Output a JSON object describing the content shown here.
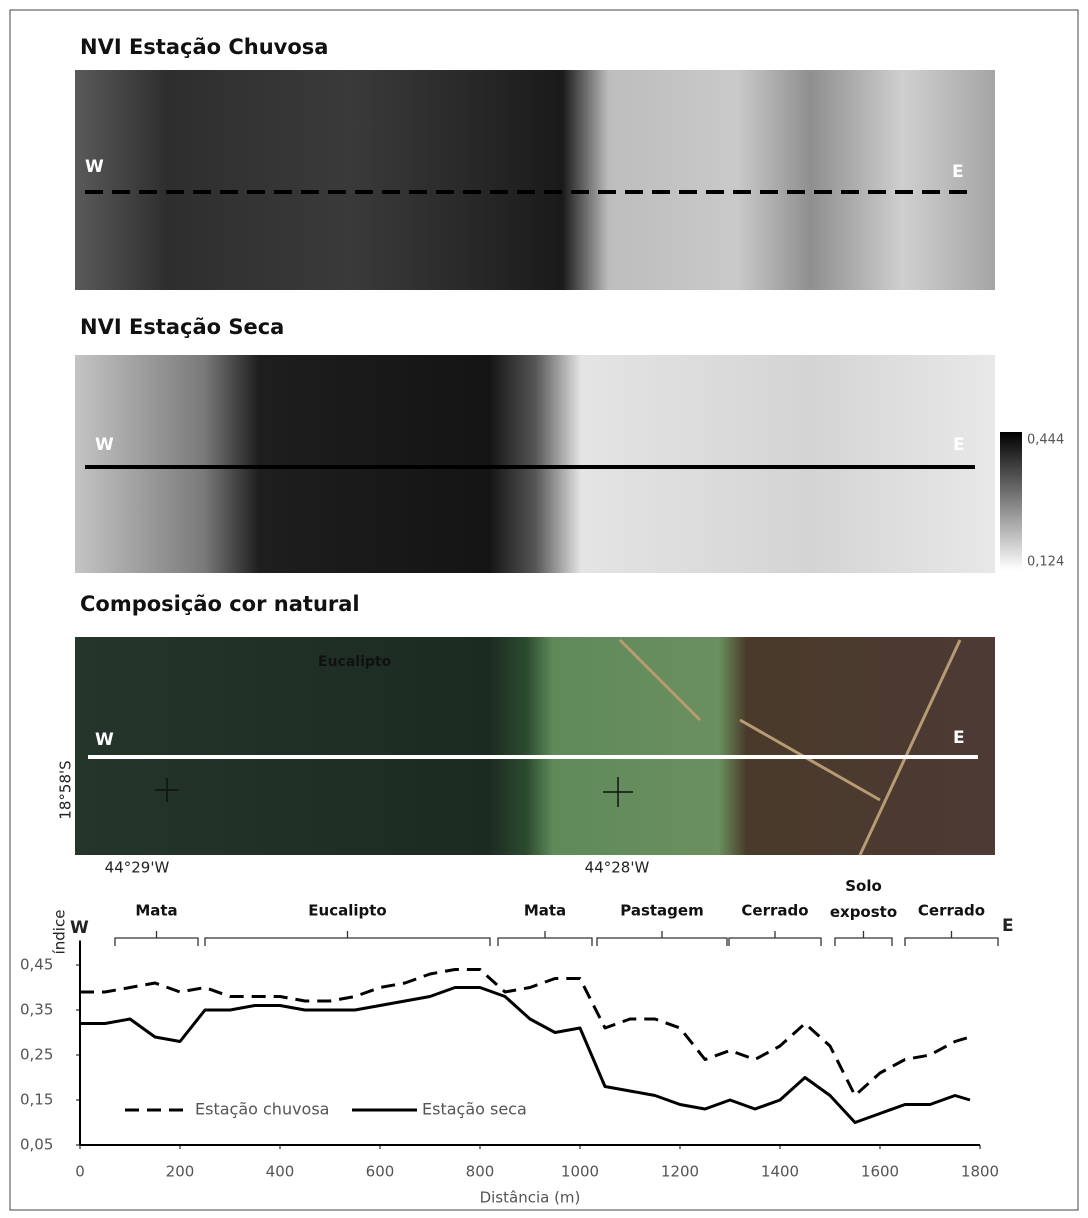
{
  "panels": [
    {
      "title": "NVI Estação Chuvosa",
      "west": "W",
      "east": "E"
    },
    {
      "title": "NVI Estação Seca",
      "west": "W",
      "east": "E"
    },
    {
      "title": "Composição cor natural",
      "west": "W",
      "east": "E"
    }
  ],
  "colorbar": {
    "max": {
      "value": 0.444,
      "label": "0,444"
    },
    "min": {
      "value": 0.124,
      "label": "0,124"
    }
  },
  "map_labels": {
    "inset": "Eucalipto",
    "lat": "18°58'S",
    "lon_west": "44°29'W",
    "lon_east": "44°28'W"
  },
  "chart_data": {
    "type": "line",
    "y_label": "índice",
    "x_label": "Distância (m)",
    "west": "W",
    "east": "E",
    "segments": [
      "Mata",
      "Eucalipto",
      "Mata",
      "Pastagem",
      "Cerrado",
      "Solo exposto",
      "Cerrado"
    ],
    "x": [
      0,
      50,
      100,
      150,
      200,
      250,
      300,
      350,
      400,
      450,
      500,
      550,
      600,
      650,
      700,
      750,
      800,
      850,
      900,
      950,
      1000,
      1050,
      1100,
      1150,
      1200,
      1250,
      1300,
      1350,
      1400,
      1450,
      1500,
      1550,
      1600,
      1650,
      1700,
      1750,
      1780
    ],
    "series": [
      {
        "name": "Estação chuvosa",
        "color": "#000000",
        "line_style": "dashed",
        "values": [
          0.39,
          0.39,
          0.4,
          0.41,
          0.39,
          0.4,
          0.38,
          0.38,
          0.38,
          0.37,
          0.37,
          0.38,
          0.4,
          0.41,
          0.43,
          0.44,
          0.44,
          0.39,
          0.4,
          0.42,
          0.42,
          0.31,
          0.33,
          0.33,
          0.31,
          0.24,
          0.26,
          0.24,
          0.27,
          0.32,
          0.27,
          0.16,
          0.21,
          0.24,
          0.25,
          0.28,
          0.29
        ]
      },
      {
        "name": "Estação seca",
        "color": "#000000",
        "line_style": "solid",
        "values": [
          0.32,
          0.32,
          0.33,
          0.29,
          0.28,
          0.35,
          0.35,
          0.36,
          0.36,
          0.35,
          0.35,
          0.35,
          0.36,
          0.37,
          0.38,
          0.4,
          0.4,
          0.38,
          0.33,
          0.3,
          0.31,
          0.18,
          0.17,
          0.16,
          0.14,
          0.13,
          0.15,
          0.13,
          0.15,
          0.2,
          0.16,
          0.1,
          0.12,
          0.14,
          0.14,
          0.16,
          0.15
        ]
      }
    ],
    "xlim": [
      0,
      1800
    ],
    "xticks": [
      0,
      200,
      400,
      600,
      800,
      1000,
      1200,
      1400,
      1600,
      1800
    ],
    "ylim": [
      0.05,
      0.5
    ],
    "yticks": [
      {
        "value": 0.05,
        "label": "0,05"
      },
      {
        "value": 0.15,
        "label": "0,15"
      },
      {
        "value": 0.25,
        "label": "0,25"
      },
      {
        "value": 0.35,
        "label": "0,35"
      },
      {
        "value": 0.45,
        "label": "0,45"
      }
    ],
    "grid": false
  }
}
